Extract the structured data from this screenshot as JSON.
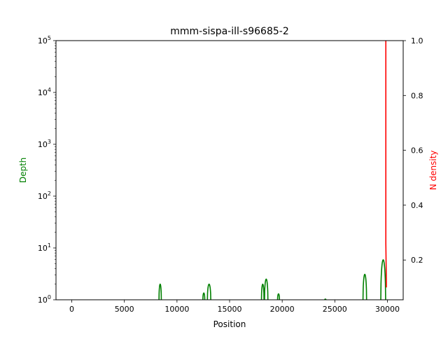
{
  "chart_data": {
    "type": "line",
    "title": "mmm-sispa-ill-s96685-2",
    "xlabel": "Position",
    "ylabel_left": "Depth",
    "ylabel_right": "N density",
    "xlim": [
      -1500,
      31500
    ],
    "x_ticks": [
      0,
      5000,
      10000,
      15000,
      20000,
      25000,
      30000
    ],
    "x_tick_labels": [
      "0",
      "5000",
      "10000",
      "15000",
      "20000",
      "25000",
      "30000"
    ],
    "y_left_scale": "log",
    "y_left_lim": [
      1,
      100000
    ],
    "y_left_ticks": [
      {
        "value": 1,
        "base": "10",
        "exp": "0"
      },
      {
        "value": 10,
        "base": "10",
        "exp": "1"
      },
      {
        "value": 100,
        "base": "10",
        "exp": "2"
      },
      {
        "value": 1000,
        "base": "10",
        "exp": "3"
      },
      {
        "value": 10000,
        "base": "10",
        "exp": "4"
      },
      {
        "value": 100000,
        "base": "10",
        "exp": "5"
      }
    ],
    "y_right_lim": [
      0.055,
      1.0
    ],
    "y_right_ticks": [
      0.2,
      0.4,
      0.6,
      0.8,
      1.0
    ],
    "y_right_tick_labels": [
      "0.2",
      "0.4",
      "0.6",
      "0.8",
      "1.0"
    ],
    "grid": false,
    "series": [
      {
        "axis": "left",
        "color": "#008000",
        "peaks": [
          {
            "center": 8400,
            "height": 2.0,
            "halfwidth": 110
          },
          {
            "center": 12550,
            "height": 1.35,
            "halfwidth": 90
          },
          {
            "center": 13050,
            "height": 2.0,
            "halfwidth": 160
          },
          {
            "center": 18150,
            "height": 2.0,
            "halfwidth": 120
          },
          {
            "center": 18480,
            "height": 2.5,
            "halfwidth": 160
          },
          {
            "center": 19650,
            "height": 1.3,
            "halfwidth": 90
          },
          {
            "center": 24100,
            "height": 1.03,
            "halfwidth": 60
          },
          {
            "center": 27850,
            "height": 3.1,
            "halfwidth": 170
          },
          {
            "center": 29600,
            "height": 5.9,
            "halfwidth": 230
          }
        ]
      },
      {
        "axis": "right",
        "color": "#ff0000",
        "x": [
          29850,
          29850,
          29900,
          29900
        ],
        "y": [
          1.0,
          0.26,
          0.12,
          0.1
        ]
      }
    ]
  }
}
